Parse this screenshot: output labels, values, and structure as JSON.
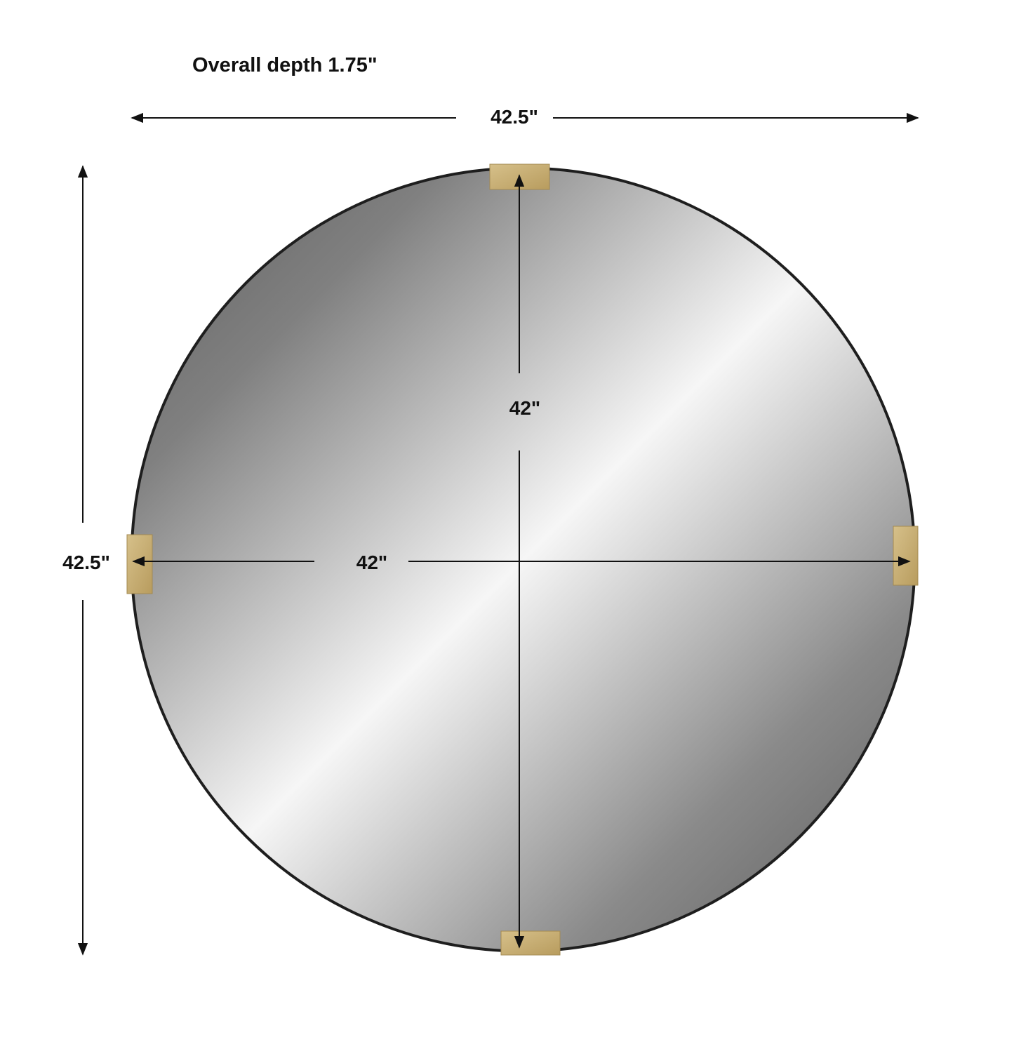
{
  "title": "Overall depth 1.75\"",
  "dimensions": {
    "overall_width": "42.5\"",
    "overall_height": "42.5\"",
    "mirror_height": "42\"",
    "mirror_width": "42\""
  },
  "colors": {
    "frame": "#1e1e1e",
    "clip": "#c9b27a",
    "mirror_dark": "#6e6e6e",
    "mirror_light": "#f4f4f4"
  }
}
